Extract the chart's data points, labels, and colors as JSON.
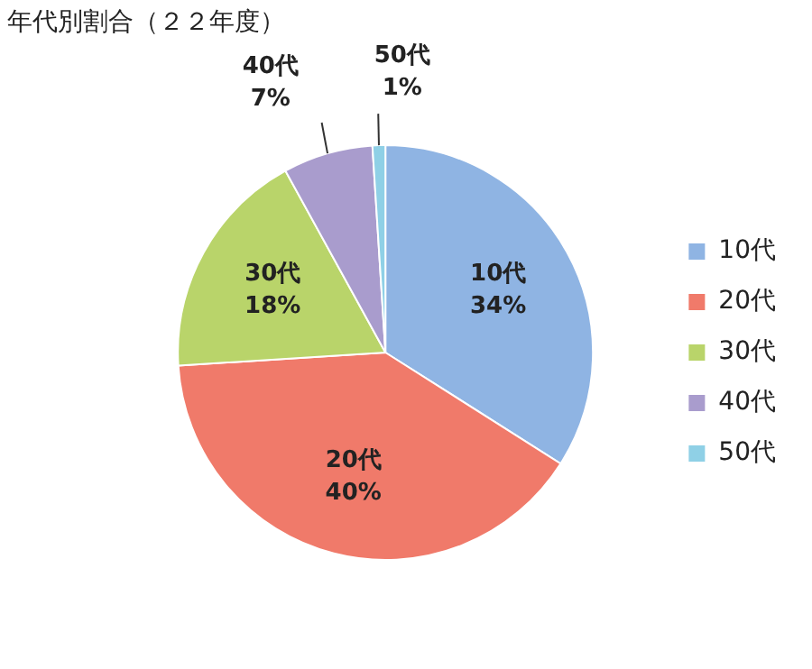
{
  "chart_data": {
    "type": "pie",
    "title": "年代別割合（２２年度）",
    "categories": [
      "10代",
      "20代",
      "30代",
      "40代",
      "50代"
    ],
    "values": [
      34,
      40,
      18,
      7,
      1
    ],
    "value_labels": [
      "34%",
      "40%",
      "18%",
      "7%",
      "1%"
    ],
    "colors": [
      "#8fb4e3",
      "#f07a6a",
      "#b9d46a",
      "#a99ccd",
      "#8fd0e6"
    ],
    "legend": "right"
  }
}
